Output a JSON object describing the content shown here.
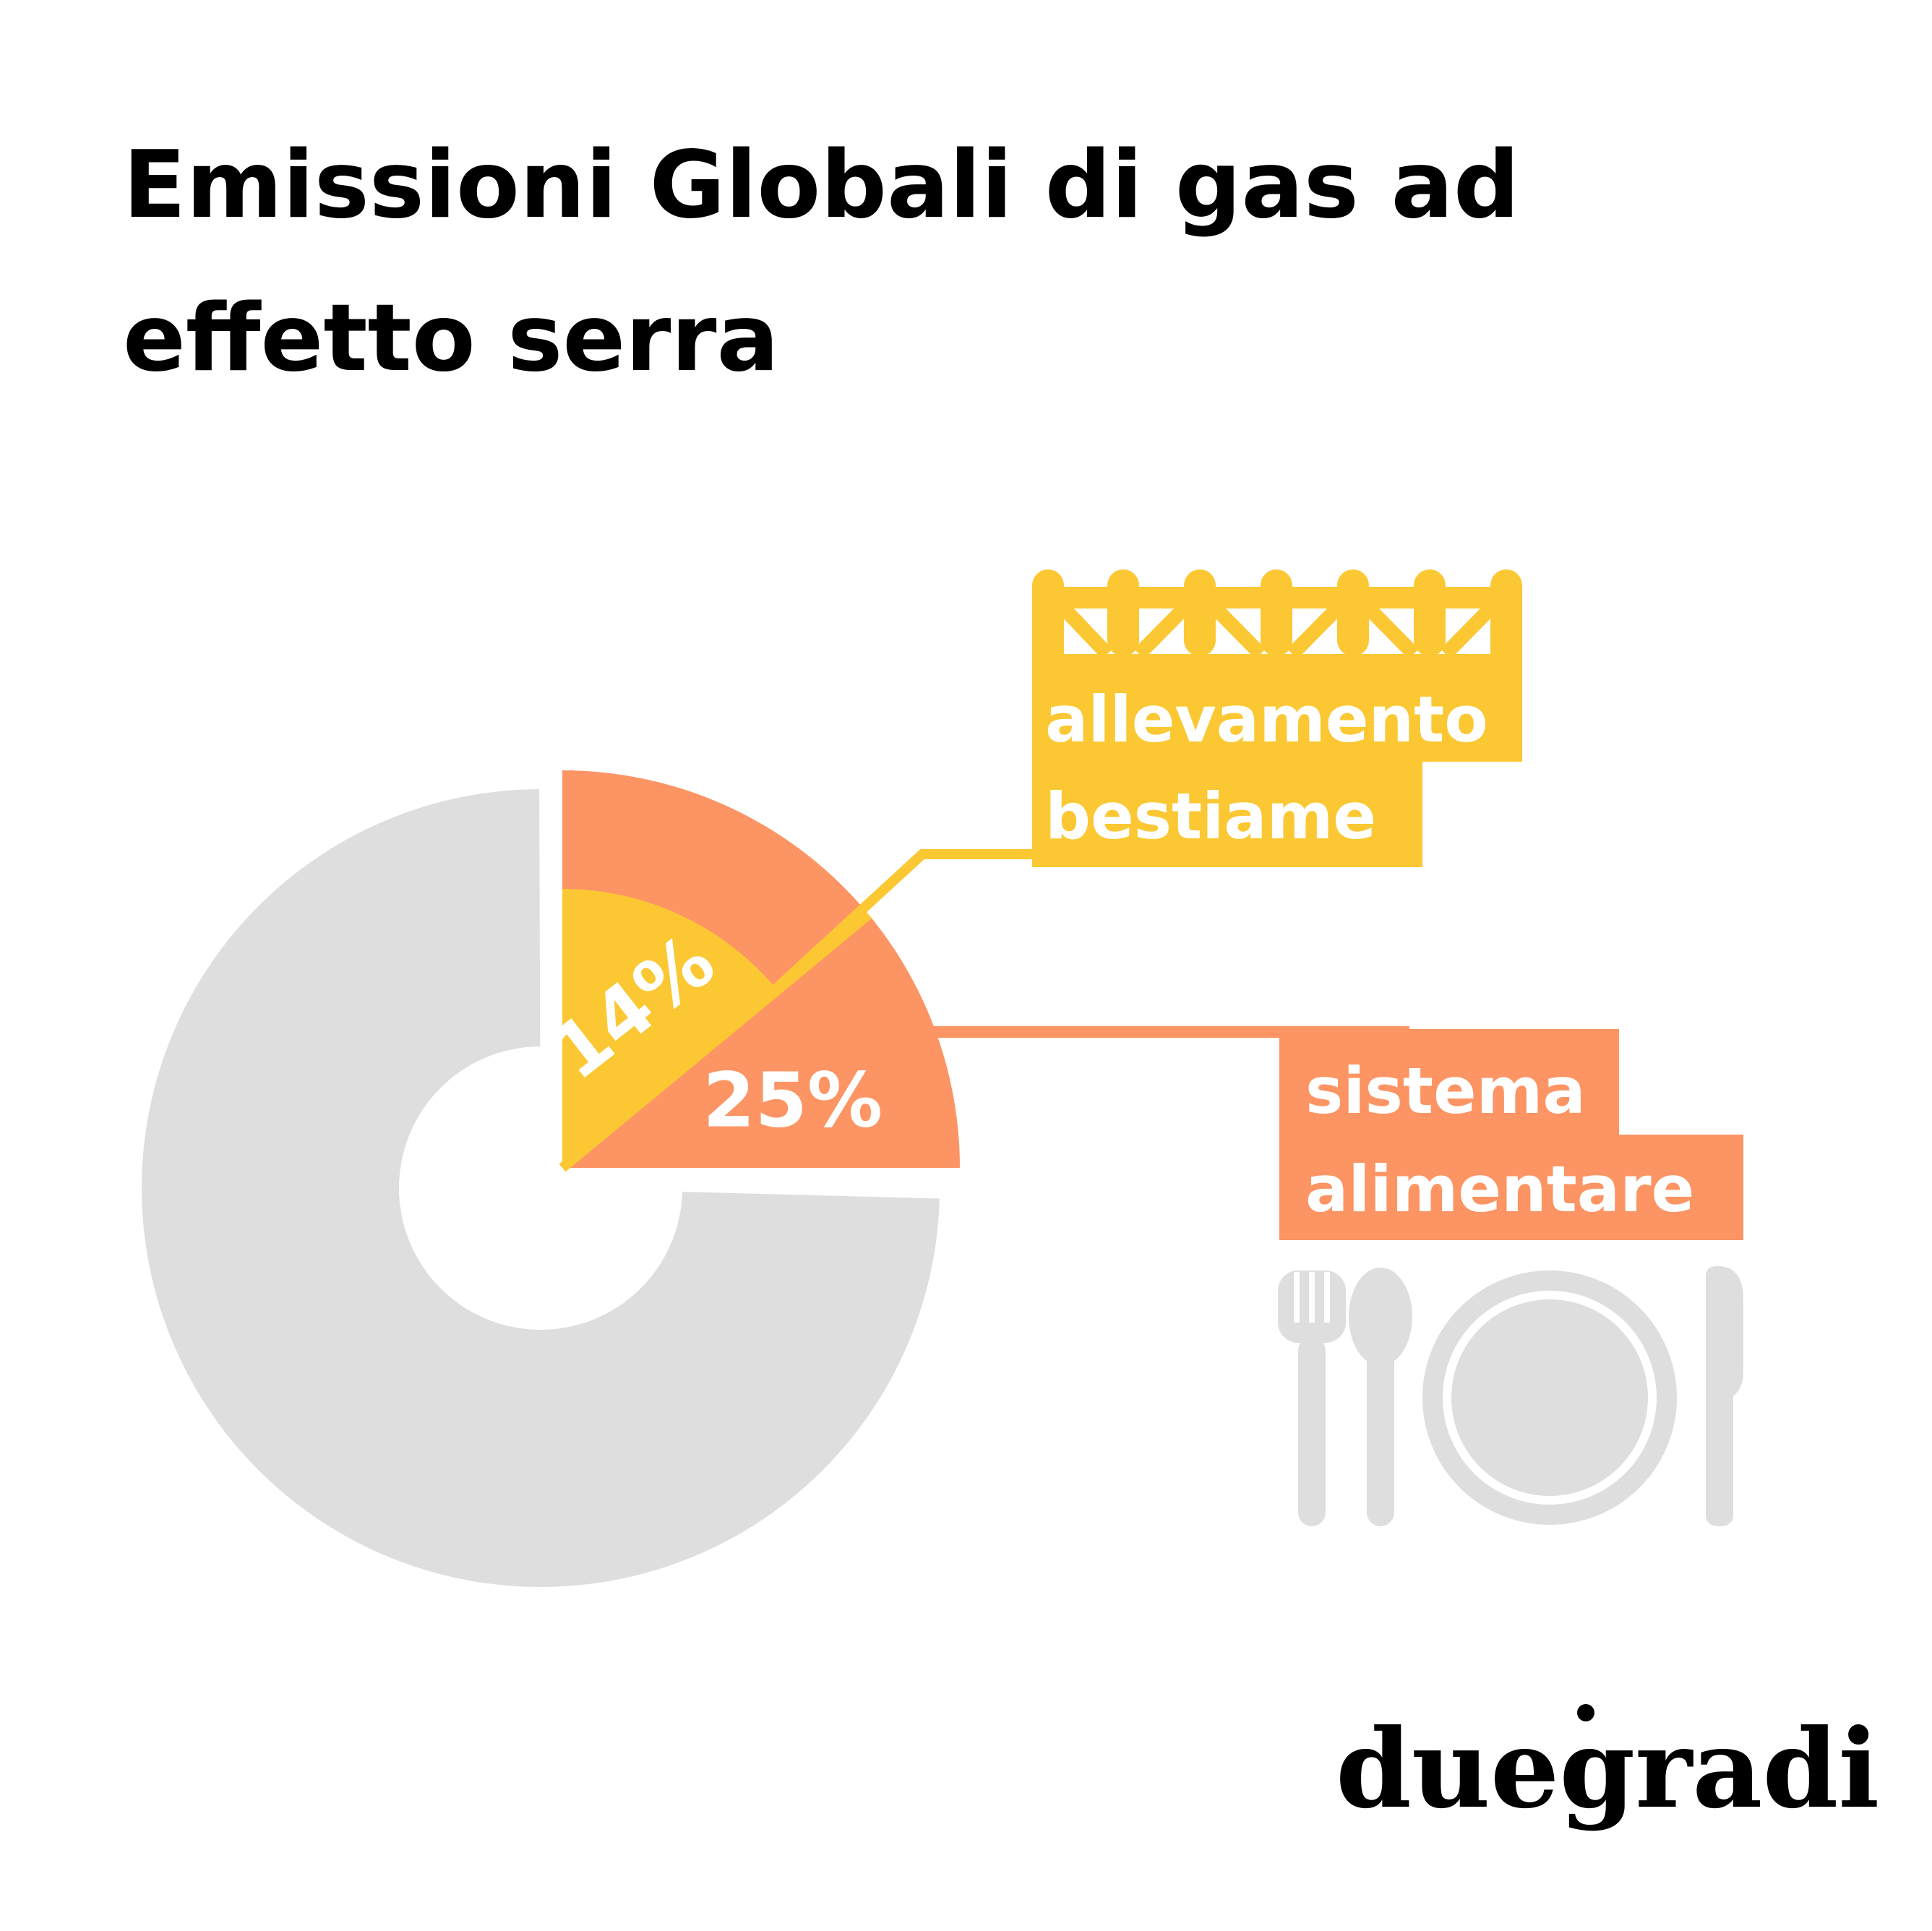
{
  "title_lines": [
    "Emissioni Globali di gas ad",
    "effetto serra"
  ],
  "chart_data": {
    "type": "pie",
    "title": "Emissioni Globali di gas ad effetto serra",
    "slices": [
      {
        "label": "sistema alimentare",
        "value": 25,
        "value_label": "25%",
        "color": "#FC9463"
      },
      {
        "label": "allevamento bestiame",
        "value": 14,
        "value_label": "14%",
        "color": "#FBC834",
        "nested_in": "sistema alimentare"
      },
      {
        "label": "",
        "value": 75,
        "color": "#DEDEDE"
      }
    ]
  },
  "labels": {
    "livestock": {
      "line1": "allevamento",
      "line2": "bestiame"
    },
    "food_system": {
      "line1": "sistema",
      "line2": "alimentare"
    }
  },
  "colors": {
    "orange": "#FC9463",
    "yellow": "#FBC834",
    "grey": "#DEDEDE",
    "text_dark": "#000000"
  },
  "icons": {
    "fence": "fence-icon",
    "cutlery": "plate-and-cutlery-icon"
  },
  "logo": "duegradi"
}
